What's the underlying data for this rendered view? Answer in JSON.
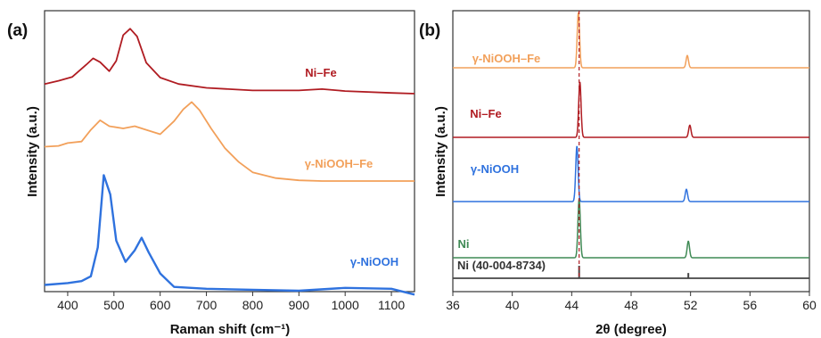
{
  "chart_data": [
    {
      "type": "line",
      "panel_label": "(a)",
      "xlabel": "Raman shift (cm⁻¹)",
      "ylabel": "Intensity (a.u.)",
      "xlim": [
        350,
        1150
      ],
      "xticks": [
        "400",
        "500",
        "600",
        "700",
        "800",
        "900",
        "1000",
        "1100"
      ],
      "xtick_values": [
        400,
        500,
        600,
        700,
        800,
        900,
        1000,
        1100
      ],
      "y_ticks_shown": false,
      "series": [
        {
          "name": "Ni–Fe",
          "color": "#b01c22",
          "offset": 2.0,
          "points": [
            [
              350,
              0.22
            ],
            [
              380,
              0.27
            ],
            [
              410,
              0.33
            ],
            [
              440,
              0.52
            ],
            [
              455,
              0.62
            ],
            [
              470,
              0.56
            ],
            [
              490,
              0.42
            ],
            [
              505,
              0.58
            ],
            [
              520,
              0.98
            ],
            [
              535,
              1.08
            ],
            [
              550,
              0.96
            ],
            [
              570,
              0.55
            ],
            [
              600,
              0.32
            ],
            [
              640,
              0.22
            ],
            [
              700,
              0.16
            ],
            [
              800,
              0.12
            ],
            [
              900,
              0.12
            ],
            [
              950,
              0.14
            ],
            [
              1000,
              0.11
            ],
            [
              1100,
              0.08
            ],
            [
              1150,
              0.07
            ]
          ]
        },
        {
          "name": "γ-NiOOH–Fe",
          "color": "#f2a05a",
          "offset": 1.0,
          "points": [
            [
              350,
              0.47
            ],
            [
              380,
              0.48
            ],
            [
              400,
              0.52
            ],
            [
              430,
              0.54
            ],
            [
              450,
              0.7
            ],
            [
              470,
              0.83
            ],
            [
              490,
              0.75
            ],
            [
              520,
              0.72
            ],
            [
              545,
              0.75
            ],
            [
              570,
              0.7
            ],
            [
              600,
              0.64
            ],
            [
              630,
              0.82
            ],
            [
              650,
              0.98
            ],
            [
              668,
              1.08
            ],
            [
              685,
              0.97
            ],
            [
              710,
              0.72
            ],
            [
              740,
              0.45
            ],
            [
              770,
              0.26
            ],
            [
              800,
              0.12
            ],
            [
              850,
              0.04
            ],
            [
              900,
              0.01
            ],
            [
              950,
              0.0
            ],
            [
              1000,
              0.0
            ],
            [
              1150,
              0.0
            ]
          ]
        },
        {
          "name": "γ-NiOOH",
          "color": "#2f72de",
          "offset": 0.0,
          "points": [
            [
              350,
              0.06
            ],
            [
              400,
              0.08
            ],
            [
              430,
              0.1
            ],
            [
              450,
              0.15
            ],
            [
              465,
              0.45
            ],
            [
              478,
              1.2
            ],
            [
              492,
              1.0
            ],
            [
              505,
              0.52
            ],
            [
              525,
              0.3
            ],
            [
              545,
              0.42
            ],
            [
              560,
              0.55
            ],
            [
              575,
              0.4
            ],
            [
              600,
              0.18
            ],
            [
              630,
              0.04
            ],
            [
              700,
              0.02
            ],
            [
              800,
              0.01
            ],
            [
              900,
              0.0
            ],
            [
              1000,
              0.03
            ],
            [
              1100,
              0.02
            ],
            [
              1150,
              -0.04
            ]
          ]
        }
      ]
    },
    {
      "type": "line",
      "panel_label": "(b)",
      "xlabel": "2θ (degree)",
      "ylabel": "Intensity (a.u.)",
      "xlim": [
        36,
        60
      ],
      "xticks": [
        "36",
        "40",
        "44",
        "48",
        "52",
        "56",
        "60"
      ],
      "xtick_values": [
        36,
        40,
        44,
        48,
        52,
        56,
        60
      ],
      "y_ticks_shown": false,
      "reference_line_x": 44.5,
      "series": [
        {
          "name": "γ-NiOOH–Fe",
          "color": "#f2a05a",
          "offset": 3,
          "peaks": [
            [
              44.45,
              1.0
            ],
            [
              51.78,
              0.22
            ]
          ]
        },
        {
          "name": "Ni–Fe",
          "color": "#b01c22",
          "offset": 2,
          "peaks": [
            [
              44.55,
              1.0
            ],
            [
              51.95,
              0.22
            ]
          ]
        },
        {
          "name": "γ-NiOOH",
          "color": "#2f72de",
          "offset": 1,
          "peaks": [
            [
              44.35,
              1.0
            ],
            [
              51.72,
              0.22
            ]
          ]
        },
        {
          "name": "Ni",
          "color": "#3f8a55",
          "offset": 0,
          "peaks": [
            [
              44.5,
              1.0
            ],
            [
              51.85,
              0.28
            ]
          ]
        }
      ],
      "reference": {
        "name": "Ni (40-004-8734)",
        "color": "#444444",
        "sticks": [
          [
            44.5,
            1.0
          ],
          [
            51.85,
            0.42
          ]
        ]
      }
    }
  ]
}
